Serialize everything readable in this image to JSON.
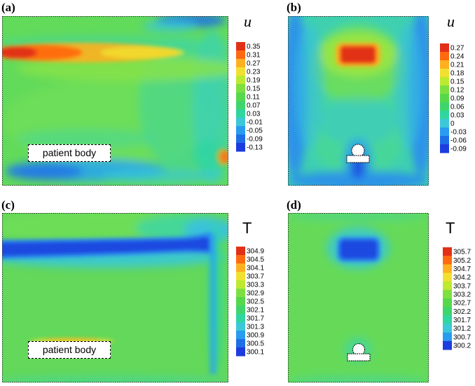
{
  "panels": [
    {
      "letter": "(a)",
      "variable": "u",
      "label": "patient body",
      "ticks": [
        "0.35",
        "0.31",
        "0.27",
        "0.23",
        "0.19",
        "0.15",
        "0.11",
        "0.07",
        "0.03",
        "-0.01",
        "-0.05",
        "-0.09",
        "-0.13"
      ],
      "colors": [
        "#e23018",
        "#ff6a10",
        "#ffb020",
        "#f2e030",
        "#bcea30",
        "#7ee040",
        "#56d84c",
        "#3ed66c",
        "#2fd6a0",
        "#3cc8d8",
        "#2a9cf0",
        "#1e6ee8",
        "#1c3ce0"
      ]
    },
    {
      "letter": "(b)",
      "variable": "u",
      "label": "",
      "ticks": [
        "0.27",
        "0.24",
        "0.21",
        "0.18",
        "0.15",
        "0.12",
        "0.09",
        "0.06",
        "0.03",
        "0",
        "-0.03",
        "-0.06",
        "-0.09"
      ],
      "colors": [
        "#e23018",
        "#ff6a10",
        "#ffb020",
        "#f2e030",
        "#bcea30",
        "#7ee040",
        "#56d84c",
        "#3ed66c",
        "#2fd6a0",
        "#3cc8d8",
        "#2a9cf0",
        "#1e6ee8",
        "#1c3ce0"
      ]
    },
    {
      "letter": "(c)",
      "variable": "T",
      "label": "patient body",
      "ticks": [
        "304.9",
        "304.5",
        "304.1",
        "303.7",
        "303.3",
        "302.9",
        "302.5",
        "302.1",
        "301.7",
        "301.3",
        "300.9",
        "300.5",
        "300.1"
      ],
      "colors": [
        "#e23018",
        "#ff6a10",
        "#ffb020",
        "#f2e030",
        "#bcea30",
        "#7ee040",
        "#56d84c",
        "#3ed66c",
        "#2fd6a0",
        "#3cc8d8",
        "#2a9cf0",
        "#1e6ee8",
        "#1c3ce0"
      ]
    },
    {
      "letter": "(d)",
      "variable": "T",
      "label": "",
      "ticks": [
        "305.7",
        "305.2",
        "304.7",
        "304.2",
        "303.7",
        "303.2",
        "302.7",
        "302.2",
        "301.7",
        "301.2",
        "300.7",
        "300.2"
      ],
      "colors": [
        "#e23018",
        "#ff6a10",
        "#ffb020",
        "#f2e030",
        "#bcea30",
        "#7ee040",
        "#56d84c",
        "#3ed66c",
        "#2fd6a0",
        "#3cc8d8",
        "#2a9cf0",
        "#1c3ce0"
      ]
    }
  ]
}
